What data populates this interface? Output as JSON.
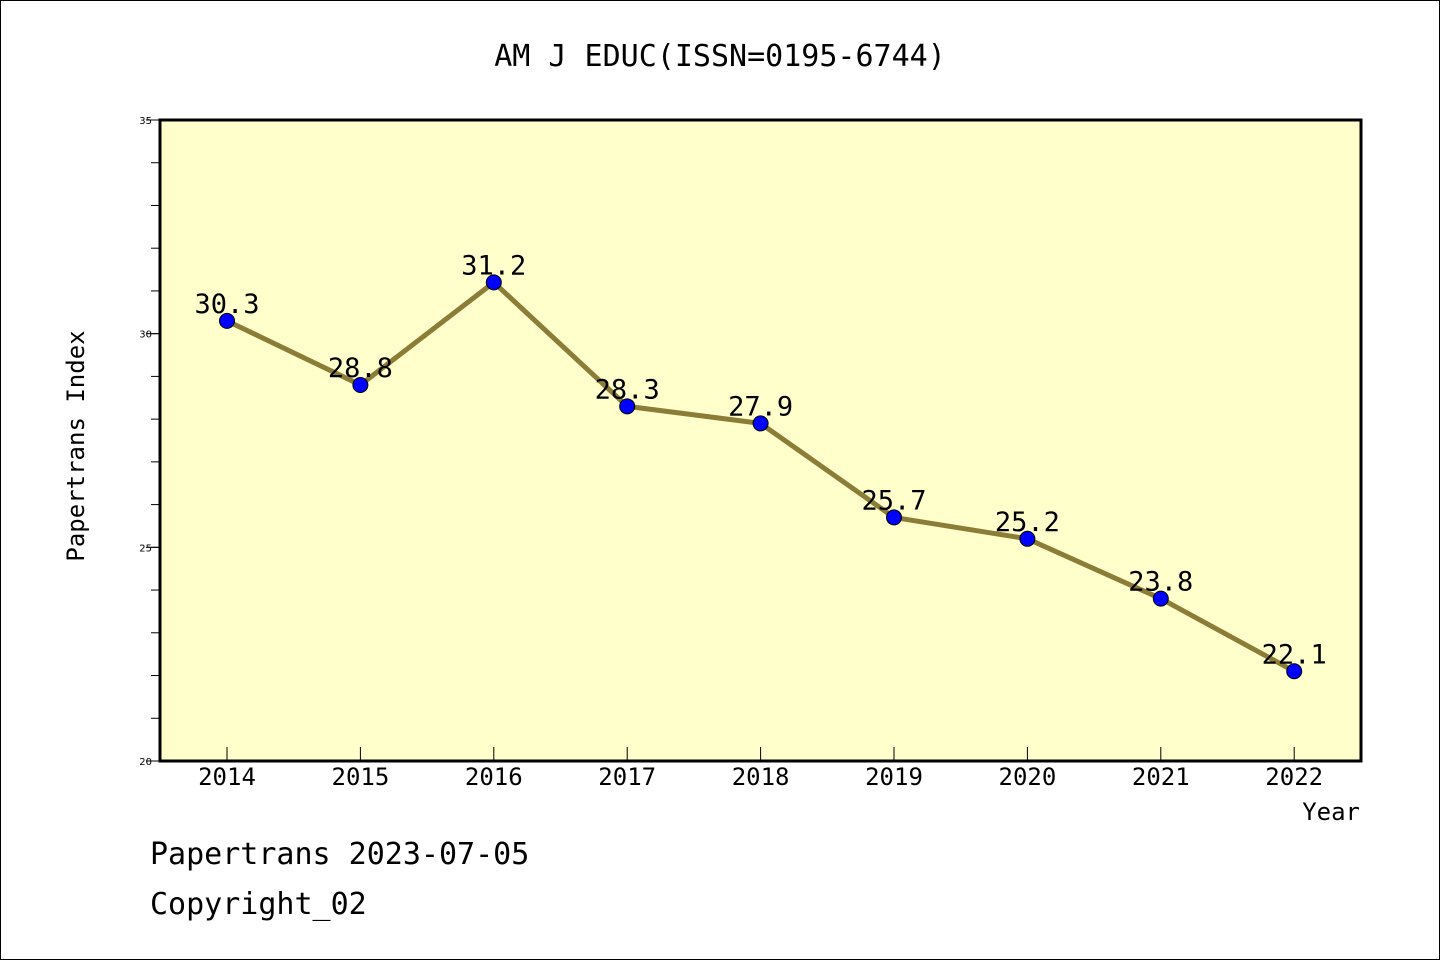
{
  "chart_data": {
    "type": "line",
    "title": "AM J EDUC(ISSN=0195-6744)",
    "xlabel": "Year",
    "ylabel": "Papertrans Index",
    "x": [
      "2014",
      "2015",
      "2016",
      "2017",
      "2018",
      "2019",
      "2020",
      "2021",
      "2022"
    ],
    "series": [
      {
        "values": [
          30.3,
          28.8,
          31.2,
          28.3,
          27.9,
          25.7,
          25.2,
          23.8,
          22.1
        ],
        "labels": [
          "30.3",
          "28.8",
          "31.2",
          "28.3",
          "27.9",
          "25.7",
          "25.2",
          "23.8",
          "22.1"
        ]
      }
    ],
    "ylim": [
      20,
      35
    ],
    "y_ticks": [
      {
        "value": 20,
        "label": "20"
      },
      {
        "value": 25,
        "label": "25"
      },
      {
        "value": 30,
        "label": "30"
      },
      {
        "value": 35,
        "label": "35"
      }
    ],
    "y_minor_step": 1,
    "grid": false,
    "legend": "none",
    "colors": {
      "plot_background": "#ffffcc",
      "line": "#8b7d37",
      "marker": "#0000ff",
      "axis": "#000000"
    }
  },
  "footer": {
    "credit": "Papertrans 2023-07-05",
    "copyright": "Copyright_02"
  }
}
